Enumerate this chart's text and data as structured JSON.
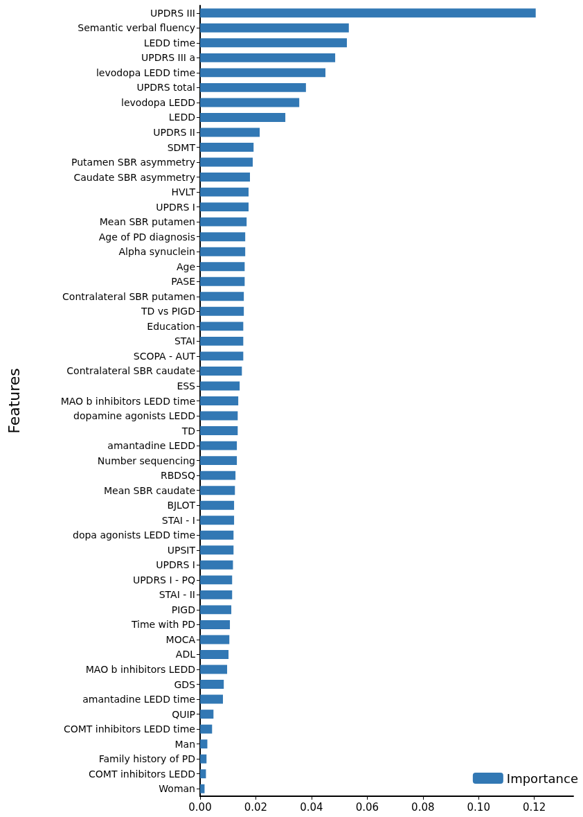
{
  "chart_data": {
    "type": "bar",
    "orientation": "horizontal",
    "ylabel": "Features",
    "legend": "bottom right",
    "grid": false,
    "categories": [
      "UPDRS III",
      "Semantic verbal fluency",
      "LEDD time",
      "UPDRS III a",
      "levodopa LEDD time",
      "UPDRS total",
      "levodopa LEDD",
      "LEDD",
      "UPDRS II",
      "SDMT",
      "Putamen SBR asymmetry",
      "Caudate SBR asymmetry",
      "HVLT",
      "UPDRS I",
      "Mean SBR putamen",
      "Age of PD diagnosis",
      "Alpha synuclein",
      "Age",
      "PASE",
      "Contralateral SBR putamen",
      "TD vs PIGD",
      "Education",
      "STAI",
      "SCOPA - AUT",
      "Contralateral SBR caudate",
      "ESS",
      "MAO b inhibitors LEDD time",
      "dopamine agonists LEDD",
      "TD",
      "amantadine LEDD",
      "Number sequencing",
      "RBDSQ",
      "Mean SBR caudate",
      "BJLOT",
      "STAI - I",
      "dopa agonists LEDD time",
      "UPSIT",
      "UPDRS I",
      "UPDRS I - PQ",
      "STAI - II",
      "PIGD",
      "Time with PD",
      "MOCA",
      "ADL",
      "MAO b inhibitors LEDD",
      "GDS",
      "amantadine LEDD time",
      "QUIP",
      "COMT inhibitors LEDD time",
      "Man",
      "Family history of PD",
      "COMT inhibitors LEDD",
      "Woman"
    ],
    "series": [
      {
        "name": "Importance",
        "color": "#3278b4",
        "values": [
          0.1205,
          0.0534,
          0.0527,
          0.0485,
          0.045,
          0.038,
          0.0356,
          0.0306,
          0.0214,
          0.0192,
          0.0189,
          0.0179,
          0.0174,
          0.0174,
          0.0167,
          0.0162,
          0.0162,
          0.016,
          0.016,
          0.0157,
          0.0157,
          0.0155,
          0.0155,
          0.0155,
          0.015,
          0.0142,
          0.0137,
          0.0135,
          0.0135,
          0.0132,
          0.0132,
          0.0127,
          0.0125,
          0.0122,
          0.0122,
          0.012,
          0.012,
          0.0118,
          0.0115,
          0.0115,
          0.0112,
          0.0107,
          0.0105,
          0.0102,
          0.0097,
          0.0085,
          0.0082,
          0.0048,
          0.0043,
          0.0026,
          0.0023,
          0.0021,
          0.0016
        ]
      }
    ],
    "xlim": [
      0,
      0.134
    ],
    "xticks": [
      {
        "value": 0,
        "label": "0.00"
      },
      {
        "value": 0.02,
        "label": "0.02"
      },
      {
        "value": 0.04,
        "label": "0.04"
      },
      {
        "value": 0.06,
        "label": "0.06"
      },
      {
        "value": 0.08,
        "label": "0.08"
      },
      {
        "value": 0.1,
        "label": "0.10"
      },
      {
        "value": 0.12,
        "label": "0.12"
      }
    ]
  }
}
